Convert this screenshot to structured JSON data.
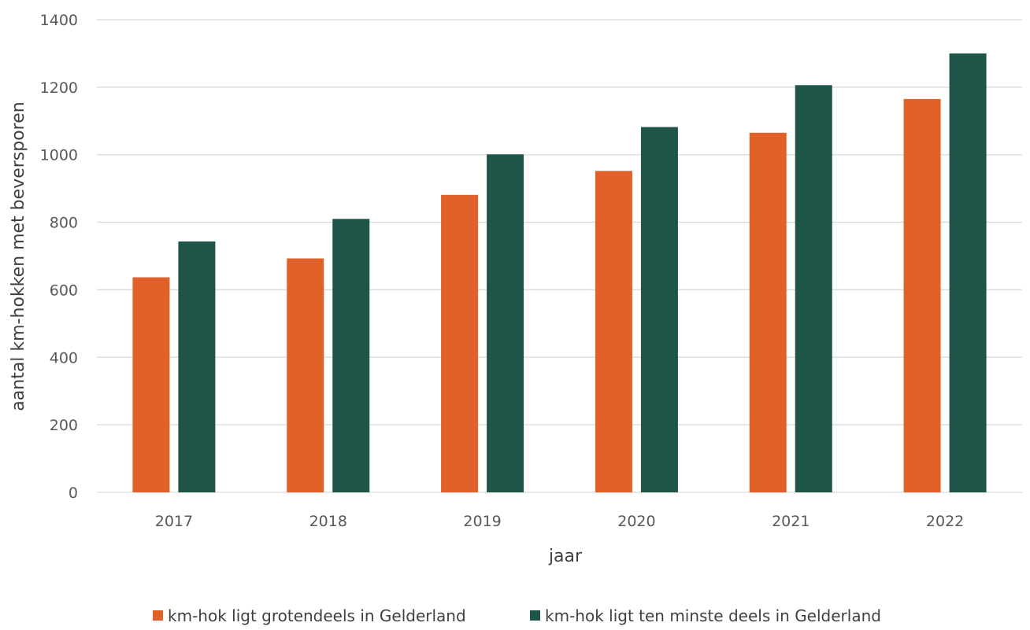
{
  "chart_data": {
    "type": "bar",
    "title": "",
    "xlabel": "jaar",
    "ylabel": "aantal km-hokken met beversporen",
    "categories": [
      "2017",
      "2018",
      "2019",
      "2020",
      "2021",
      "2022"
    ],
    "series": [
      {
        "name": "km-hok ligt grotendeels in Gelderland",
        "color": "#e0622a",
        "values": [
          637,
          693,
          881,
          952,
          1065,
          1165
        ]
      },
      {
        "name": "km-hok ligt ten minste deels in Gelderland",
        "color": "#1f5449",
        "values": [
          743,
          810,
          1001,
          1082,
          1206,
          1300
        ]
      }
    ],
    "ylim": [
      0,
      1400
    ],
    "yticks": [
      "0",
      "200",
      "400",
      "600",
      "800",
      "1000",
      "1200",
      "1400"
    ],
    "grid": true,
    "legend_position": "bottom"
  }
}
